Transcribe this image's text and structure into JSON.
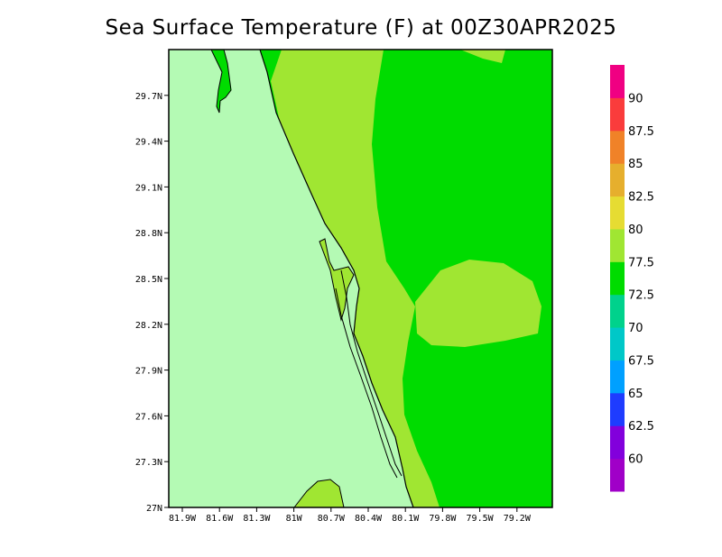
{
  "title": "Sea Surface Temperature (F) at 00Z30APR2025",
  "map": {
    "lon_ticks": [
      "81.9W",
      "81.6W",
      "81.3W",
      "81W",
      "80.7W",
      "80.4W",
      "80.1W",
      "79.8W",
      "79.5W",
      "79.2W"
    ],
    "lat_ticks": [
      "27N",
      "27.3N",
      "27.6N",
      "27.9N",
      "28.2N",
      "28.5N",
      "28.8N",
      "29.1N",
      "29.4N",
      "29.7N"
    ],
    "colors": {
      "land": "#b4fab4",
      "band_77_5_80": "#a0e632",
      "band_72_5_77_5": "#00dc00",
      "coast": "#000000"
    }
  },
  "colorbar": {
    "labels": [
      "60",
      "62.5",
      "65",
      "67.5",
      "70",
      "72.5",
      "77.5",
      "80",
      "82.5",
      "85",
      "87.5",
      "90"
    ],
    "colors": [
      "#a000c8",
      "#8200dc",
      "#1e3cff",
      "#00a0ff",
      "#00c8c8",
      "#00d28c",
      "#00dc00",
      "#a0e632",
      "#e6dc32",
      "#e6af2d",
      "#f08228",
      "#fa3c3c",
      "#f00082"
    ]
  }
}
